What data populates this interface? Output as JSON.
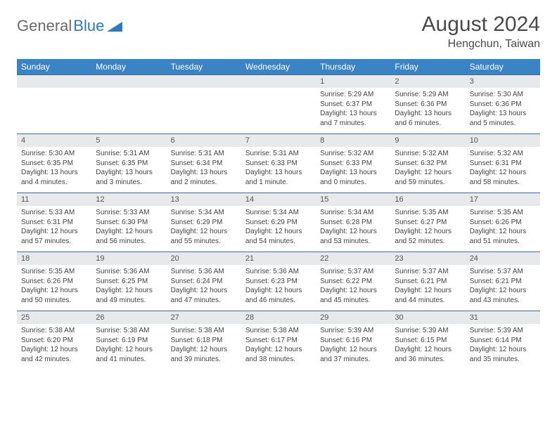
{
  "logo": {
    "text1": "General",
    "text2": "Blue"
  },
  "title": {
    "month": "August 2024",
    "location": "Hengchun, Taiwan"
  },
  "colors": {
    "header_bg": "#3a84c6",
    "header_text": "#ffffff",
    "daynum_bg": "#e8e9ea",
    "week_border": "#3a6fa5",
    "logo_gray": "#6b6b6b",
    "logo_blue": "#2b7cc4"
  },
  "day_headers": [
    "Sunday",
    "Monday",
    "Tuesday",
    "Wednesday",
    "Thursday",
    "Friday",
    "Saturday"
  ],
  "weeks": [
    {
      "nums": [
        "",
        "",
        "",
        "",
        "1",
        "2",
        "3"
      ],
      "cells": [
        [],
        [],
        [],
        [],
        [
          "Sunrise: 5:29 AM",
          "Sunset: 6:37 PM",
          "Daylight: 13 hours",
          "and 7 minutes."
        ],
        [
          "Sunrise: 5:29 AM",
          "Sunset: 6:36 PM",
          "Daylight: 13 hours",
          "and 6 minutes."
        ],
        [
          "Sunrise: 5:30 AM",
          "Sunset: 6:36 PM",
          "Daylight: 13 hours",
          "and 5 minutes."
        ]
      ]
    },
    {
      "nums": [
        "4",
        "5",
        "6",
        "7",
        "8",
        "9",
        "10"
      ],
      "cells": [
        [
          "Sunrise: 5:30 AM",
          "Sunset: 6:35 PM",
          "Daylight: 13 hours",
          "and 4 minutes."
        ],
        [
          "Sunrise: 5:31 AM",
          "Sunset: 6:35 PM",
          "Daylight: 13 hours",
          "and 3 minutes."
        ],
        [
          "Sunrise: 5:31 AM",
          "Sunset: 6:34 PM",
          "Daylight: 13 hours",
          "and 2 minutes."
        ],
        [
          "Sunrise: 5:31 AM",
          "Sunset: 6:33 PM",
          "Daylight: 13 hours",
          "and 1 minute."
        ],
        [
          "Sunrise: 5:32 AM",
          "Sunset: 6:33 PM",
          "Daylight: 13 hours",
          "and 0 minutes."
        ],
        [
          "Sunrise: 5:32 AM",
          "Sunset: 6:32 PM",
          "Daylight: 12 hours",
          "and 59 minutes."
        ],
        [
          "Sunrise: 5:32 AM",
          "Sunset: 6:31 PM",
          "Daylight: 12 hours",
          "and 58 minutes."
        ]
      ]
    },
    {
      "nums": [
        "11",
        "12",
        "13",
        "14",
        "15",
        "16",
        "17"
      ],
      "cells": [
        [
          "Sunrise: 5:33 AM",
          "Sunset: 6:31 PM",
          "Daylight: 12 hours",
          "and 57 minutes."
        ],
        [
          "Sunrise: 5:33 AM",
          "Sunset: 6:30 PM",
          "Daylight: 12 hours",
          "and 56 minutes."
        ],
        [
          "Sunrise: 5:34 AM",
          "Sunset: 6:29 PM",
          "Daylight: 12 hours",
          "and 55 minutes."
        ],
        [
          "Sunrise: 5:34 AM",
          "Sunset: 6:29 PM",
          "Daylight: 12 hours",
          "and 54 minutes."
        ],
        [
          "Sunrise: 5:34 AM",
          "Sunset: 6:28 PM",
          "Daylight: 12 hours",
          "and 53 minutes."
        ],
        [
          "Sunrise: 5:35 AM",
          "Sunset: 6:27 PM",
          "Daylight: 12 hours",
          "and 52 minutes."
        ],
        [
          "Sunrise: 5:35 AM",
          "Sunset: 6:26 PM",
          "Daylight: 12 hours",
          "and 51 minutes."
        ]
      ]
    },
    {
      "nums": [
        "18",
        "19",
        "20",
        "21",
        "22",
        "23",
        "24"
      ],
      "cells": [
        [
          "Sunrise: 5:35 AM",
          "Sunset: 6:26 PM",
          "Daylight: 12 hours",
          "and 50 minutes."
        ],
        [
          "Sunrise: 5:36 AM",
          "Sunset: 6:25 PM",
          "Daylight: 12 hours",
          "and 49 minutes."
        ],
        [
          "Sunrise: 5:36 AM",
          "Sunset: 6:24 PM",
          "Daylight: 12 hours",
          "and 47 minutes."
        ],
        [
          "Sunrise: 5:36 AM",
          "Sunset: 6:23 PM",
          "Daylight: 12 hours",
          "and 46 minutes."
        ],
        [
          "Sunrise: 5:37 AM",
          "Sunset: 6:22 PM",
          "Daylight: 12 hours",
          "and 45 minutes."
        ],
        [
          "Sunrise: 5:37 AM",
          "Sunset: 6:21 PM",
          "Daylight: 12 hours",
          "and 44 minutes."
        ],
        [
          "Sunrise: 5:37 AM",
          "Sunset: 6:21 PM",
          "Daylight: 12 hours",
          "and 43 minutes."
        ]
      ]
    },
    {
      "nums": [
        "25",
        "26",
        "27",
        "28",
        "29",
        "30",
        "31"
      ],
      "cells": [
        [
          "Sunrise: 5:38 AM",
          "Sunset: 6:20 PM",
          "Daylight: 12 hours",
          "and 42 minutes."
        ],
        [
          "Sunrise: 5:38 AM",
          "Sunset: 6:19 PM",
          "Daylight: 12 hours",
          "and 41 minutes."
        ],
        [
          "Sunrise: 5:38 AM",
          "Sunset: 6:18 PM",
          "Daylight: 12 hours",
          "and 39 minutes."
        ],
        [
          "Sunrise: 5:38 AM",
          "Sunset: 6:17 PM",
          "Daylight: 12 hours",
          "and 38 minutes."
        ],
        [
          "Sunrise: 5:39 AM",
          "Sunset: 6:16 PM",
          "Daylight: 12 hours",
          "and 37 minutes."
        ],
        [
          "Sunrise: 5:39 AM",
          "Sunset: 6:15 PM",
          "Daylight: 12 hours",
          "and 36 minutes."
        ],
        [
          "Sunrise: 5:39 AM",
          "Sunset: 6:14 PM",
          "Daylight: 12 hours",
          "and 35 minutes."
        ]
      ]
    }
  ]
}
